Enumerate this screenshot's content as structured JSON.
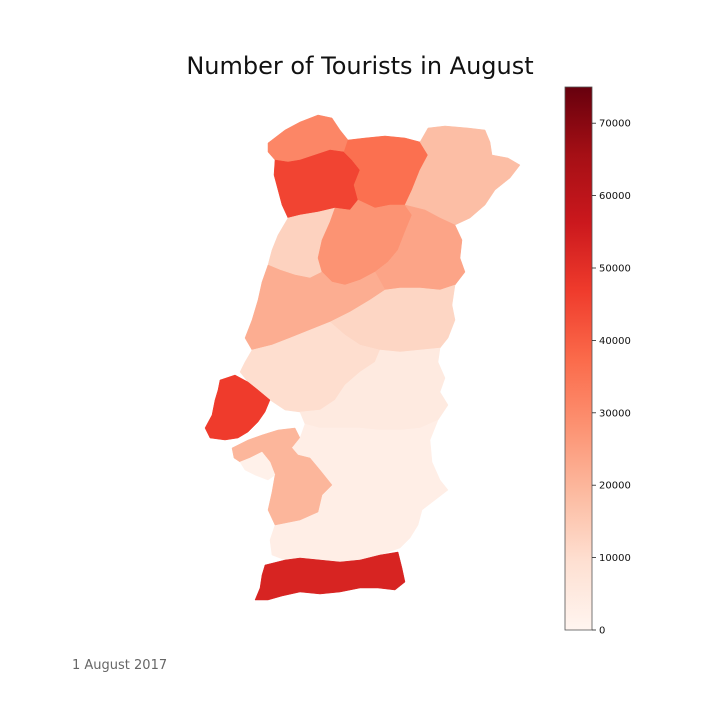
{
  "title": "Number of Tourists in August",
  "caption": "1 August 2017",
  "colorbar": {
    "min": 0,
    "max": 75000,
    "ticks": [
      0,
      10000,
      20000,
      30000,
      40000,
      50000,
      60000,
      70000
    ],
    "tick_labels": [
      "0",
      "10000",
      "20000",
      "30000",
      "40000",
      "50000",
      "60000",
      "70000"
    ],
    "colormap": "Reds",
    "color_stops": [
      "#fff5f0",
      "#fee0d2",
      "#fcbba1",
      "#fc9272",
      "#fb6a4a",
      "#ef3b2c",
      "#cb181d",
      "#a50f15",
      "#67000d"
    ]
  },
  "chart_data": {
    "type": "choropleth",
    "value_unit": "tourists",
    "regions": [
      {
        "id": "r1",
        "value": 31000
      },
      {
        "id": "r2",
        "value": 45000
      },
      {
        "id": "r3",
        "value": 36000
      },
      {
        "id": "r4",
        "value": 18000
      },
      {
        "id": "r5",
        "value": 13000
      },
      {
        "id": "r6",
        "value": 28000
      },
      {
        "id": "r7",
        "value": 24000
      },
      {
        "id": "r8",
        "value": 22000
      },
      {
        "id": "r9",
        "value": 12000
      },
      {
        "id": "r10",
        "value": 10000
      },
      {
        "id": "r11",
        "value": 47000
      },
      {
        "id": "r12",
        "value": 20000
      },
      {
        "id": "r13",
        "value": 5000
      },
      {
        "id": "r14",
        "value": 3000
      },
      {
        "id": "r15",
        "value": 20000
      },
      {
        "id": "r16",
        "value": 2000
      },
      {
        "id": "r17",
        "value": 53000
      }
    ]
  }
}
